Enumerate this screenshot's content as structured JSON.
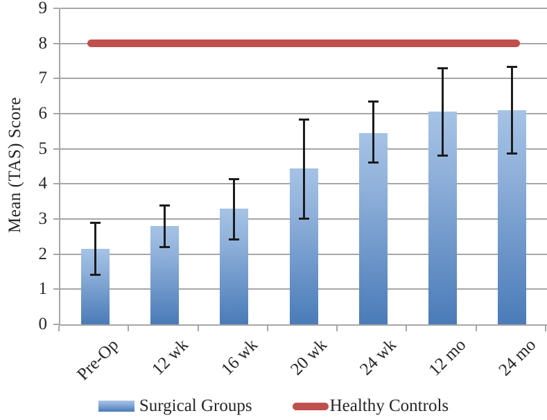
{
  "chart_data": {
    "type": "bar",
    "title": "",
    "ylabel": "Mean (TAS) Score",
    "xlabel": "",
    "ylim": [
      0,
      9
    ],
    "yticks": [
      0,
      1,
      2,
      3,
      4,
      5,
      6,
      7,
      8,
      9
    ],
    "grid": true,
    "legend_position": "bottom",
    "categories": [
      "Pre-Op",
      "12 wk",
      "16 wk",
      "20 wk",
      "24 wk",
      "12 mo",
      "24 mo"
    ],
    "series": [
      {
        "name": "Surgical Groups",
        "type": "bar",
        "values": [
          2.15,
          2.8,
          3.3,
          4.45,
          5.45,
          6.05,
          6.1
        ],
        "error_low": [
          1.4,
          2.2,
          2.4,
          3.0,
          4.6,
          4.8,
          4.85
        ],
        "error_high": [
          2.9,
          3.4,
          4.15,
          5.85,
          6.35,
          7.3,
          7.35
        ]
      },
      {
        "name": "Healthy Controls",
        "type": "line",
        "values": [
          8,
          8,
          8,
          8,
          8,
          8,
          8
        ]
      }
    ],
    "colors": {
      "bar_gradient_top": "#a6c3e6",
      "bar_gradient_bottom": "#4a7bb8",
      "line": "#c0504d",
      "grid": "#a6a6a6",
      "error_bar": "#1c1c1c",
      "text": "#262626"
    }
  }
}
